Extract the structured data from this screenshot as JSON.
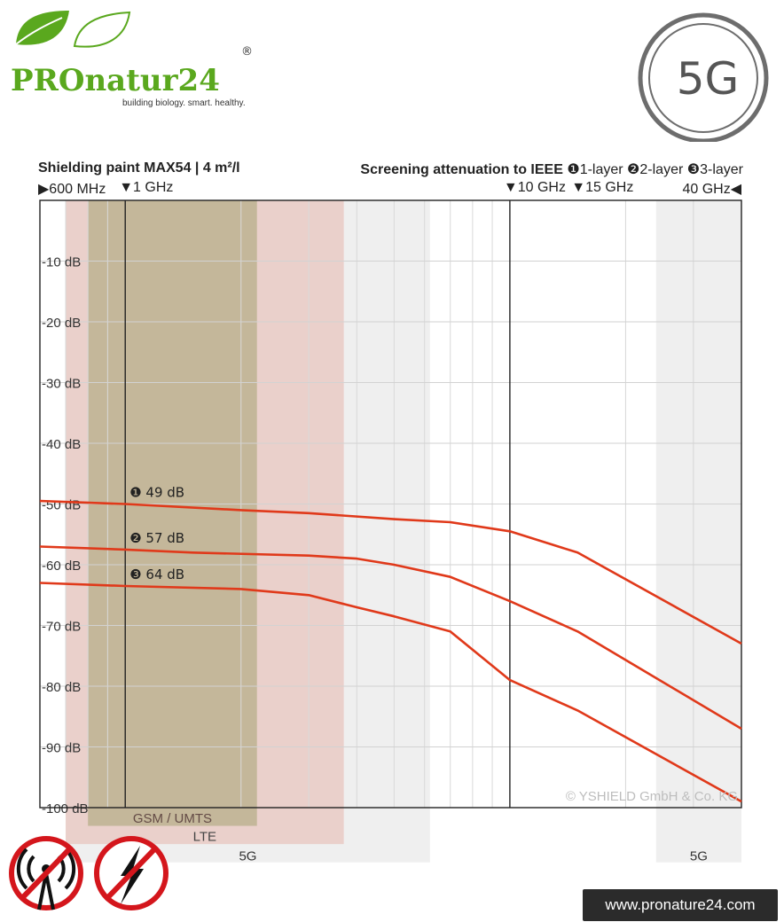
{
  "brand": {
    "name_prefix": "PRO",
    "name_suffix": "natur24",
    "registered": "®",
    "tagline": "building biology. smart. healthy.",
    "green": "#5aa81e",
    "leaf_icon": "leaf-icon"
  },
  "badge": {
    "text": "5G",
    "icon": "circle-badge-icon"
  },
  "chart_data": {
    "type": "line",
    "title": "Shielding paint MAX54 | 4 m²/l",
    "subtitle": {
      "label": "Screening attenuation to IEEE",
      "layer1": "❶1-layer",
      "layer2": "❷2-layer",
      "layer3": "❸3-layer"
    },
    "xscale": "log",
    "xlim": [
      0.6,
      40
    ],
    "x_unit": "GHz",
    "ylim": [
      -100,
      0
    ],
    "y_ticks": [
      {
        "value": -10,
        "label": "-10 dB"
      },
      {
        "value": -20,
        "label": "-20 dB"
      },
      {
        "value": -30,
        "label": "-30 dB"
      },
      {
        "value": -40,
        "label": "-40 dB"
      },
      {
        "value": -50,
        "label": "-50 dB"
      },
      {
        "value": -60,
        "label": "-60 dB"
      },
      {
        "value": -70,
        "label": "-70 dB"
      },
      {
        "value": -80,
        "label": "-80 dB"
      },
      {
        "value": -90,
        "label": "-90 dB"
      },
      {
        "value": -100,
        "label": "-100 dB"
      }
    ],
    "x_markers": [
      {
        "x": 0.6,
        "label": "▶600 MHz",
        "align": "left"
      },
      {
        "x": 1,
        "label": "▼1 GHz",
        "align": "left"
      },
      {
        "x": 10,
        "label": "▼10 GHz",
        "align": "left"
      },
      {
        "x": 15,
        "label": "▼15 GHz",
        "align": "left"
      },
      {
        "x": 40,
        "label": "40 GHz◀",
        "align": "right"
      }
    ],
    "vertical_lines": [
      1,
      10
    ],
    "grid": true,
    "line_color": "#e0391a",
    "series": [
      {
        "label": "❶ 49 dB",
        "label_x": 1,
        "points": [
          [
            0.6,
            -49.5
          ],
          [
            1,
            -50
          ],
          [
            2,
            -51
          ],
          [
            3,
            -51.5
          ],
          [
            5,
            -52.5
          ],
          [
            7,
            -53
          ],
          [
            10,
            -54.5
          ],
          [
            15,
            -58
          ],
          [
            40,
            -73
          ]
        ]
      },
      {
        "label": "❷ 57 dB",
        "label_x": 1,
        "points": [
          [
            0.6,
            -57
          ],
          [
            1,
            -57.5
          ],
          [
            1.5,
            -58
          ],
          [
            3,
            -58.5
          ],
          [
            4,
            -59
          ],
          [
            5,
            -60
          ],
          [
            7,
            -62
          ],
          [
            10,
            -66
          ],
          [
            15,
            -71
          ],
          [
            40,
            -87
          ]
        ]
      },
      {
        "label": "❸ 64 dB",
        "label_x": 1,
        "points": [
          [
            0.6,
            -63
          ],
          [
            1,
            -63.5
          ],
          [
            2,
            -64
          ],
          [
            3,
            -65
          ],
          [
            4,
            -67
          ],
          [
            5,
            -68.5
          ],
          [
            7,
            -71
          ],
          [
            10,
            -79
          ],
          [
            15,
            -84
          ],
          [
            40,
            -99
          ]
        ]
      }
    ],
    "bands": [
      {
        "label": "GSM / UMTS",
        "x0": 0.8,
        "x1": 2.2,
        "color": "#6a9a3a",
        "opacity": 0.38,
        "bottom_db": -103,
        "label_y": -102.5
      },
      {
        "label": "LTE",
        "x0": 0.7,
        "x1": 3.7,
        "color": "#e25a3e",
        "opacity": 0.22,
        "bottom_db": -106,
        "label_y": -105.5
      },
      {
        "label": "5G",
        "x0": 0.7,
        "x1": 6.2,
        "color": "#9a9a9a",
        "opacity": 0.16,
        "bottom_db": -109,
        "label_y": -108.7
      },
      {
        "label": "5G",
        "x0": 24,
        "x1": 40,
        "color": "#9a9a9a",
        "opacity": 0.16,
        "bottom_db": -109,
        "label_y": -108.7
      }
    ],
    "copyright": "© YSHIELD GmbH & Co. KG"
  },
  "footer": {
    "website": "www.pronature24.com",
    "icons": [
      "no-radiation-icon",
      "no-electricity-icon"
    ],
    "prohibit_color": "#d4161c"
  }
}
